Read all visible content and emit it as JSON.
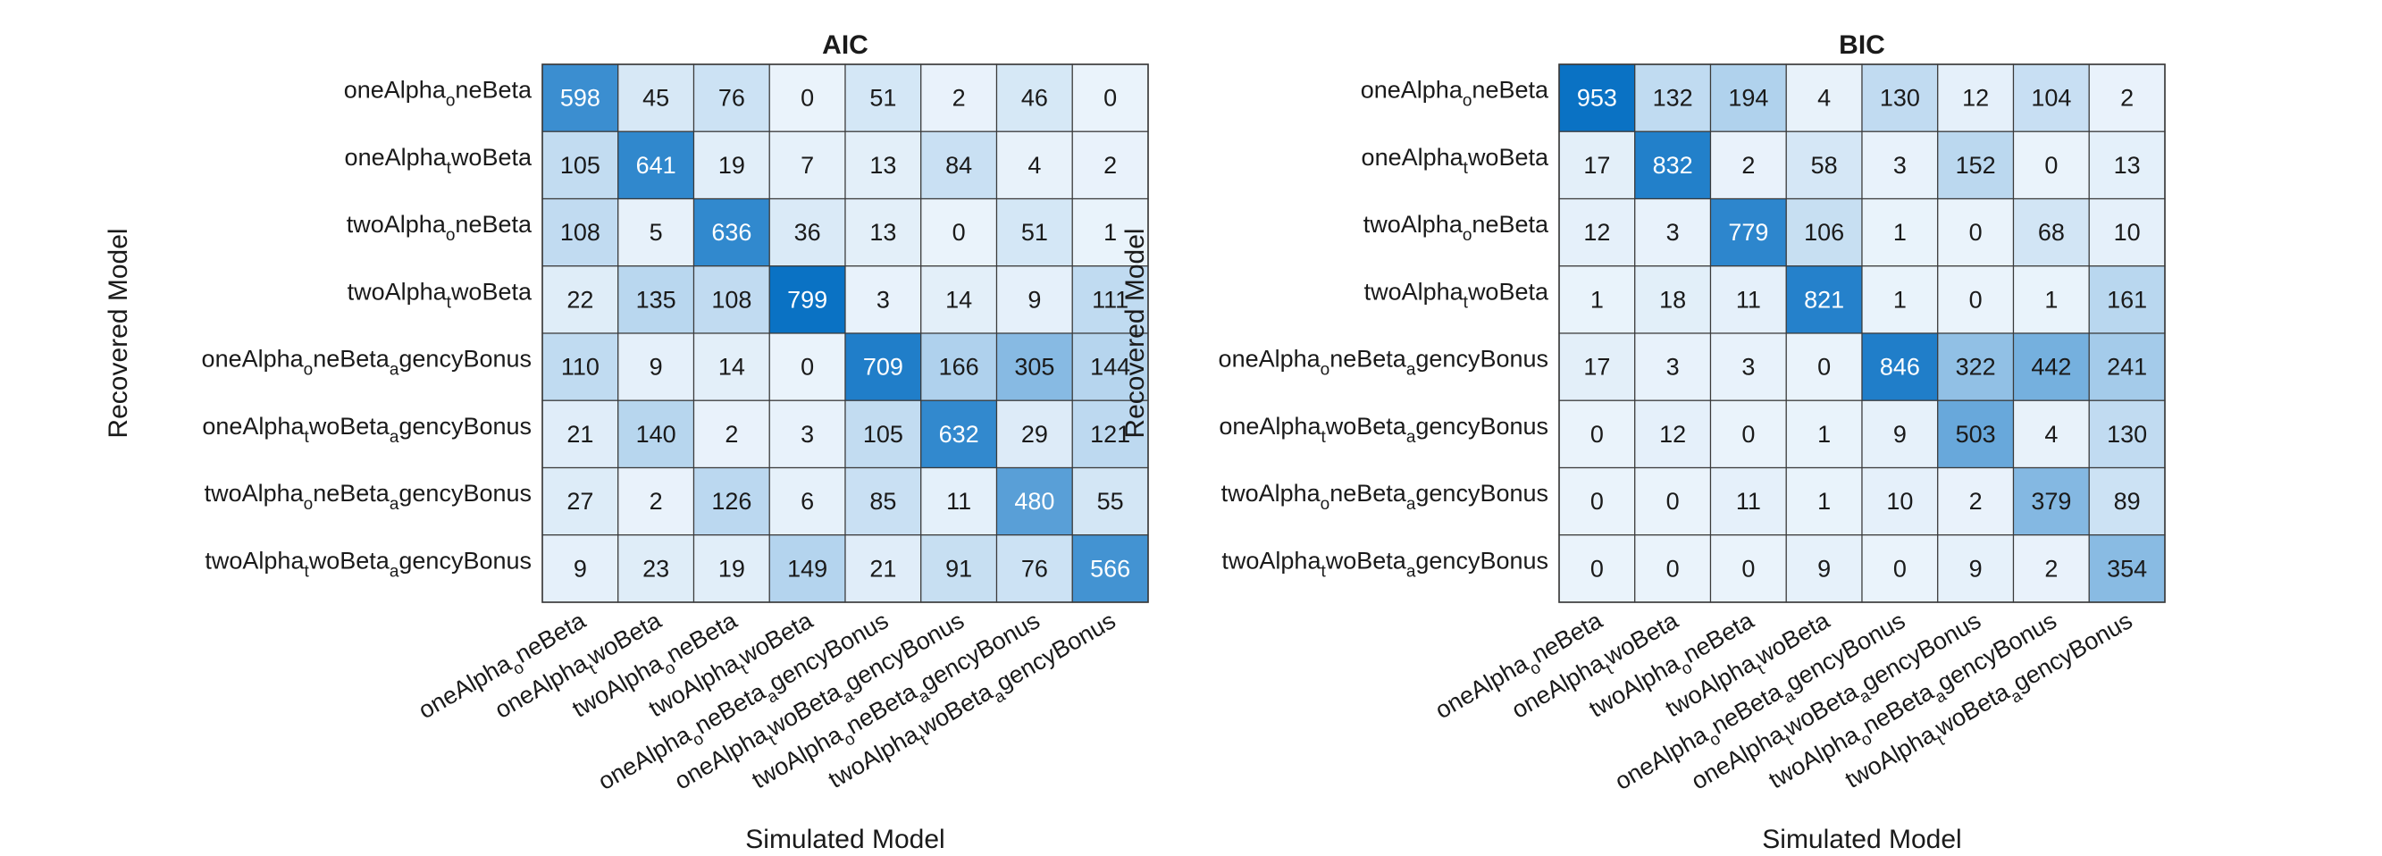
{
  "chart_data": [
    {
      "type": "heatmap",
      "title": "AIC",
      "xlabel": "Simulated Model",
      "ylabel": "Recovered Model",
      "rows": [
        {
          "base": "oneAlpha",
          "sub": "o",
          "rest": "neBeta",
          "sub2": "",
          "rest2": ""
        },
        {
          "base": "oneAlpha",
          "sub": "t",
          "rest": "woBeta",
          "sub2": "",
          "rest2": ""
        },
        {
          "base": "twoAlpha",
          "sub": "o",
          "rest": "neBeta",
          "sub2": "",
          "rest2": ""
        },
        {
          "base": "twoAlpha",
          "sub": "t",
          "rest": "woBeta",
          "sub2": "",
          "rest2": ""
        },
        {
          "base": "oneAlpha",
          "sub": "o",
          "rest": "neBeta",
          "sub2": "a",
          "rest2": "gencyBonus"
        },
        {
          "base": "oneAlpha",
          "sub": "t",
          "rest": "woBeta",
          "sub2": "a",
          "rest2": "gencyBonus"
        },
        {
          "base": "twoAlpha",
          "sub": "o",
          "rest": "neBeta",
          "sub2": "a",
          "rest2": "gencyBonus"
        },
        {
          "base": "twoAlpha",
          "sub": "t",
          "rest": "woBeta",
          "sub2": "a",
          "rest2": "gencyBonus"
        }
      ],
      "columns": [
        {
          "base": "oneAlpha",
          "sub": "o",
          "rest": "neBeta",
          "sub2": "",
          "rest2": ""
        },
        {
          "base": "oneAlpha",
          "sub": "t",
          "rest": "woBeta",
          "sub2": "",
          "rest2": ""
        },
        {
          "base": "twoAlpha",
          "sub": "o",
          "rest": "neBeta",
          "sub2": "",
          "rest2": ""
        },
        {
          "base": "twoAlpha",
          "sub": "t",
          "rest": "woBeta",
          "sub2": "",
          "rest2": ""
        },
        {
          "base": "oneAlpha",
          "sub": "o",
          "rest": "neBeta",
          "sub2": "a",
          "rest2": "gencyBonus"
        },
        {
          "base": "oneAlpha",
          "sub": "t",
          "rest": "woBeta",
          "sub2": "a",
          "rest2": "gencyBonus"
        },
        {
          "base": "twoAlpha",
          "sub": "o",
          "rest": "neBeta",
          "sub2": "a",
          "rest2": "gencyBonus"
        },
        {
          "base": "twoAlpha",
          "sub": "t",
          "rest": "woBeta",
          "sub2": "a",
          "rest2": "gencyBonus"
        }
      ],
      "values": [
        [
          598,
          45,
          76,
          0,
          51,
          2,
          46,
          0
        ],
        [
          105,
          641,
          19,
          7,
          13,
          84,
          4,
          2
        ],
        [
          108,
          5,
          636,
          36,
          13,
          0,
          51,
          1
        ],
        [
          22,
          135,
          108,
          799,
          3,
          14,
          9,
          111
        ],
        [
          110,
          9,
          14,
          0,
          709,
          166,
          305,
          144
        ],
        [
          21,
          140,
          2,
          3,
          105,
          632,
          29,
          121
        ],
        [
          27,
          2,
          126,
          6,
          85,
          11,
          480,
          55
        ],
        [
          9,
          23,
          19,
          149,
          21,
          91,
          76,
          566
        ]
      ]
    },
    {
      "type": "heatmap",
      "title": "BIC",
      "xlabel": "Simulated Model",
      "ylabel": "Recovered Model",
      "rows": [
        {
          "base": "oneAlpha",
          "sub": "o",
          "rest": "neBeta",
          "sub2": "",
          "rest2": ""
        },
        {
          "base": "oneAlpha",
          "sub": "t",
          "rest": "woBeta",
          "sub2": "",
          "rest2": ""
        },
        {
          "base": "twoAlpha",
          "sub": "o",
          "rest": "neBeta",
          "sub2": "",
          "rest2": ""
        },
        {
          "base": "twoAlpha",
          "sub": "t",
          "rest": "woBeta",
          "sub2": "",
          "rest2": ""
        },
        {
          "base": "oneAlpha",
          "sub": "o",
          "rest": "neBeta",
          "sub2": "a",
          "rest2": "gencyBonus"
        },
        {
          "base": "oneAlpha",
          "sub": "t",
          "rest": "woBeta",
          "sub2": "a",
          "rest2": "gencyBonus"
        },
        {
          "base": "twoAlpha",
          "sub": "o",
          "rest": "neBeta",
          "sub2": "a",
          "rest2": "gencyBonus"
        },
        {
          "base": "twoAlpha",
          "sub": "t",
          "rest": "woBeta",
          "sub2": "a",
          "rest2": "gencyBonus"
        }
      ],
      "columns": [
        {
          "base": "oneAlpha",
          "sub": "o",
          "rest": "neBeta",
          "sub2": "",
          "rest2": ""
        },
        {
          "base": "oneAlpha",
          "sub": "t",
          "rest": "woBeta",
          "sub2": "",
          "rest2": ""
        },
        {
          "base": "twoAlpha",
          "sub": "o",
          "rest": "neBeta",
          "sub2": "",
          "rest2": ""
        },
        {
          "base": "twoAlpha",
          "sub": "t",
          "rest": "woBeta",
          "sub2": "",
          "rest2": ""
        },
        {
          "base": "oneAlpha",
          "sub": "o",
          "rest": "neBeta",
          "sub2": "a",
          "rest2": "gencyBonus"
        },
        {
          "base": "oneAlpha",
          "sub": "t",
          "rest": "woBeta",
          "sub2": "a",
          "rest2": "gencyBonus"
        },
        {
          "base": "twoAlpha",
          "sub": "o",
          "rest": "neBeta",
          "sub2": "a",
          "rest2": "gencyBonus"
        },
        {
          "base": "twoAlpha",
          "sub": "t",
          "rest": "woBeta",
          "sub2": "a",
          "rest2": "gencyBonus"
        }
      ],
      "values": [
        [
          953,
          132,
          194,
          4,
          130,
          12,
          104,
          2
        ],
        [
          17,
          832,
          2,
          58,
          3,
          152,
          0,
          13
        ],
        [
          12,
          3,
          779,
          106,
          1,
          0,
          68,
          10
        ],
        [
          1,
          18,
          11,
          821,
          1,
          0,
          1,
          161
        ],
        [
          17,
          3,
          3,
          0,
          846,
          322,
          442,
          241
        ],
        [
          0,
          12,
          0,
          1,
          9,
          503,
          4,
          130
        ],
        [
          0,
          0,
          11,
          1,
          10,
          2,
          379,
          89
        ],
        [
          0,
          0,
          0,
          9,
          0,
          9,
          2,
          354
        ]
      ]
    }
  ],
  "colors": {
    "low": "#eaf3fb",
    "high": "#0a72c4",
    "grid": "#3a3a3a",
    "text_dark": "#1a1a1a",
    "text_light": "#ffffff"
  }
}
